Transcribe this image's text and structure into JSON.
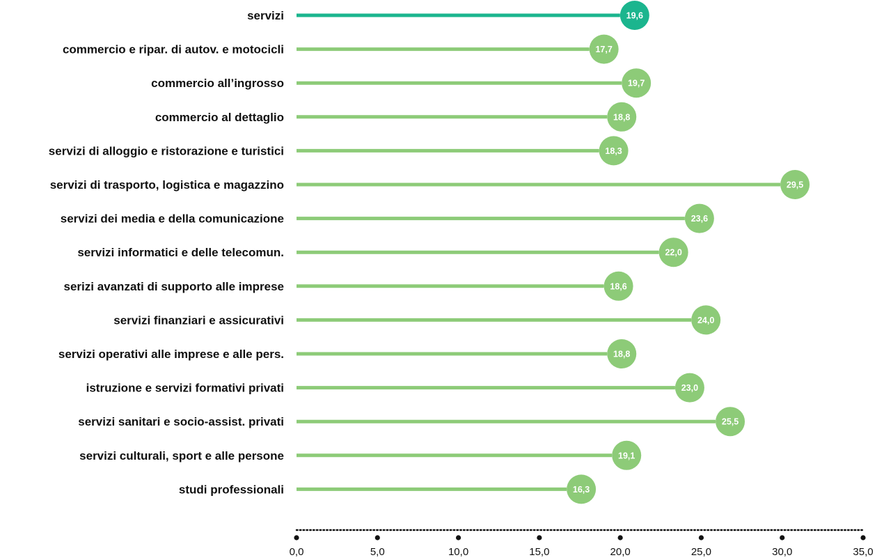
{
  "chart_data": {
    "type": "bar",
    "orientation": "horizontal",
    "style": "lollipop",
    "categories": [
      "servizi",
      "commercio e ripar. di autov. e motocicli",
      "commercio all’ingrosso",
      "commercio al dettaglio",
      "servizi di alloggio e ristorazione e turistici",
      "servizi di trasporto, logistica e magazzino",
      "servizi dei media e della comunicazione",
      "servizi informatici e delle telecomun.",
      "serizi avanzati di supporto alle imprese",
      "servizi finanziari e assicurativi",
      "servizi operativi alle imprese e alle pers.",
      "istruzione e servizi formativi privati",
      "servizi sanitari e socio-assist. privati",
      "servizi culturali, sport e alle persone",
      "studi professionali"
    ],
    "values": [
      19.6,
      17.7,
      19.7,
      18.8,
      18.3,
      29.5,
      23.6,
      22.0,
      18.6,
      24.0,
      18.8,
      23.0,
      25.5,
      19.1,
      16.3
    ],
    "value_labels": [
      "19,6",
      "17,7",
      "19,7",
      "18,8",
      "18,3",
      "29,5",
      "23,6",
      "22,0",
      "18,6",
      "24,0",
      "18,8",
      "23,0",
      "25,5",
      "19,1",
      "16,3"
    ],
    "highlight_index": 0,
    "colors": {
      "highlight": "#1bb58e",
      "default": "#8dcb78",
      "axis": "#111111"
    },
    "xlim": [
      0,
      35
    ],
    "x_ticks": [
      0,
      5,
      10,
      15,
      20,
      25,
      30,
      35
    ],
    "x_tick_labels": [
      "0,0",
      "5,0",
      "10,0",
      "15,0",
      "20,0",
      "25,0",
      "30,0",
      "35,0"
    ],
    "title": "",
    "xlabel": "",
    "ylabel": "",
    "grid": false,
    "legend": "none"
  }
}
